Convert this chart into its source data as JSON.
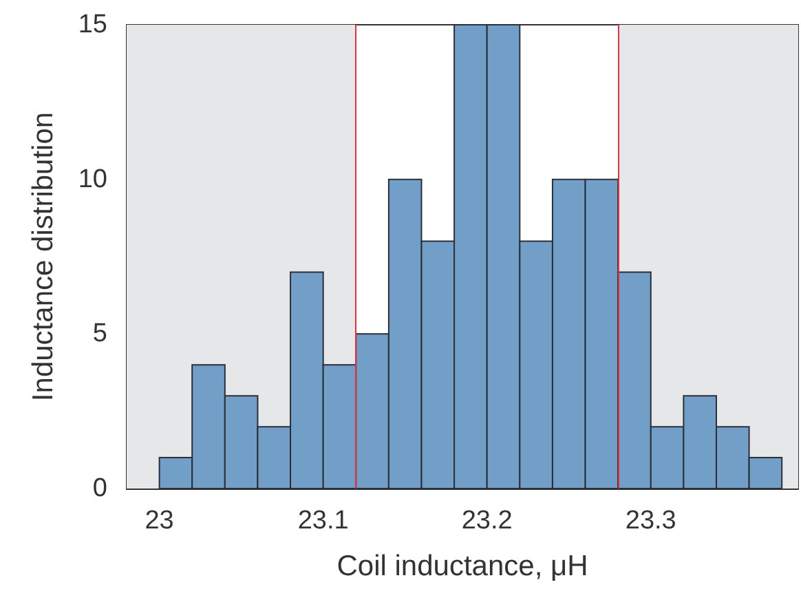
{
  "chart_data": {
    "type": "histogram",
    "xlabel": "Coil inductance, μH",
    "ylabel": "Inductance distribution",
    "bins": [
      23.0,
      23.02,
      23.04,
      23.06,
      23.08,
      23.1,
      23.12,
      23.14,
      23.16,
      23.18,
      23.2,
      23.22,
      23.24,
      23.26,
      23.28,
      23.3,
      23.32,
      23.34,
      23.36,
      23.38
    ],
    "values": [
      1,
      4,
      3,
      2,
      7,
      4,
      5,
      10,
      8,
      15,
      15,
      8,
      10,
      10,
      7,
      2,
      3,
      2,
      1
    ],
    "color": "#729fc8",
    "xlim": [
      22.98,
      23.39
    ],
    "xticks": [
      23,
      23.1,
      23.2,
      23.3
    ],
    "ylim": [
      0,
      15
    ],
    "yticks": [
      0,
      5,
      10,
      15
    ],
    "ref_lines": [
      {
        "axis": "x",
        "value": 23.12,
        "color": "#e8303a"
      },
      {
        "axis": "x",
        "value": 23.28,
        "color": "#e8303a"
      }
    ],
    "bands": [
      {
        "axis": "x",
        "from": 22.98,
        "to": 23.12,
        "color": "#e6e7e9"
      },
      {
        "axis": "x",
        "from": 23.28,
        "to": 23.39,
        "color": "#e6e7e9"
      }
    ],
    "grid": false,
    "legend": false
  }
}
